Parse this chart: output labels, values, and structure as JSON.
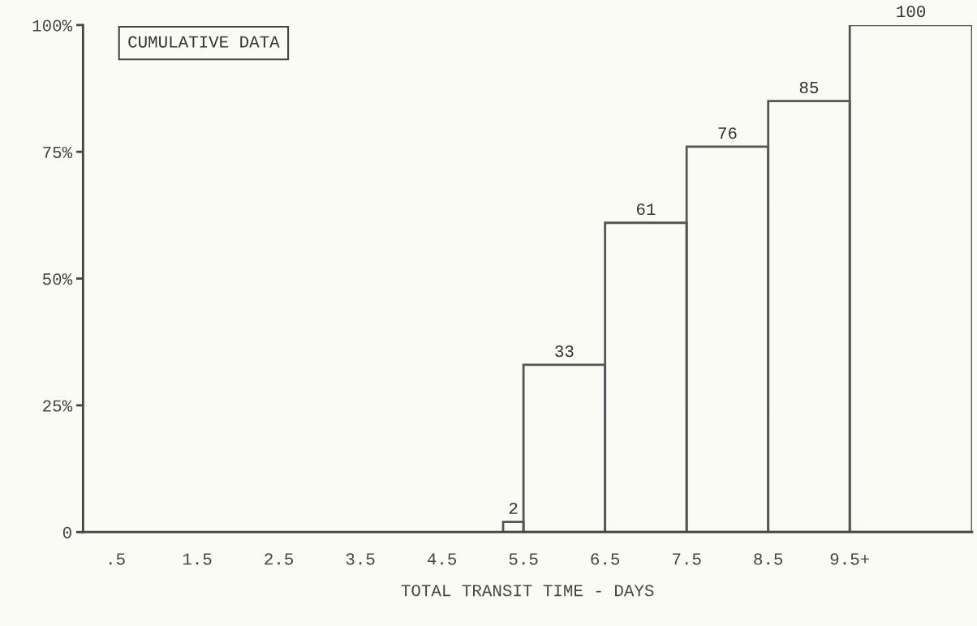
{
  "chart_data": {
    "type": "histogram",
    "bins": [
      5.25,
      5.5,
      6.5,
      7.5,
      8.5,
      9.5,
      11.0
    ],
    "values": [
      2,
      33,
      61,
      76,
      85,
      100
    ],
    "color": "#555555",
    "data_labels": true,
    "xlabel": "TOTAL TRANSIT TIME - DAYS",
    "annotations": [
      "CUMULATIVE DATA"
    ],
    "xlim": [
      0.1,
      11.0
    ],
    "xticks": [
      {
        "value": 0.5,
        "label": ".5"
      },
      1.5,
      2.5,
      3.5,
      4.5,
      5.5,
      6.5,
      7.5,
      8.5,
      {
        "value": 9.5,
        "label": "9.5+"
      }
    ],
    "ylim": [
      0,
      100
    ],
    "yticks": [
      0,
      {
        "value": 25,
        "label": "25%"
      },
      {
        "value": 50,
        "label": "50%"
      },
      {
        "value": 75,
        "label": "75%"
      },
      {
        "value": 100,
        "label": "100%"
      }
    ],
    "grid": false
  }
}
